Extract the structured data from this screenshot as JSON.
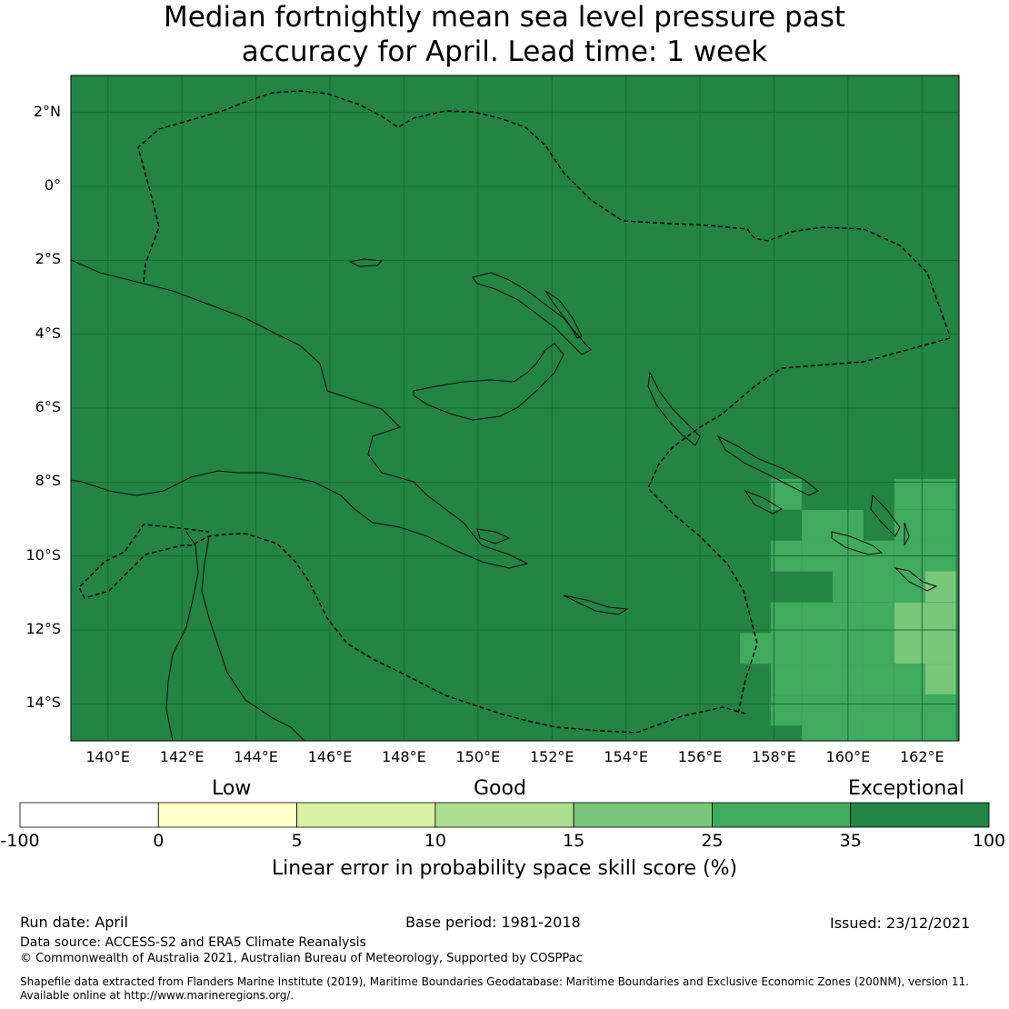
{
  "title_line1": "Median fortnightly mean sea level pressure past",
  "title_line2": "accuracy for April. Lead time: 1 week",
  "map": {
    "lon_range": [
      139,
      163
    ],
    "lat_range": [
      -15,
      3
    ],
    "lat_ticks": [
      {
        "value": 2,
        "label": "2°N"
      },
      {
        "value": 0,
        "label": "0°"
      },
      {
        "value": -2,
        "label": "2°S"
      },
      {
        "value": -4,
        "label": "4°S"
      },
      {
        "value": -6,
        "label": "6°S"
      },
      {
        "value": -8,
        "label": "8°S"
      },
      {
        "value": -10,
        "label": "10°S"
      },
      {
        "value": -12,
        "label": "12°S"
      },
      {
        "value": -14,
        "label": "14°S"
      }
    ],
    "lon_ticks": [
      {
        "value": 140,
        "label": "140°E"
      },
      {
        "value": 142,
        "label": "142°E"
      },
      {
        "value": 144,
        "label": "144°E"
      },
      {
        "value": 146,
        "label": "146°E"
      },
      {
        "value": 148,
        "label": "148°E"
      },
      {
        "value": 150,
        "label": "150°E"
      },
      {
        "value": 152,
        "label": "152°E"
      },
      {
        "value": 154,
        "label": "154°E"
      },
      {
        "value": 156,
        "label": "156°E"
      },
      {
        "value": 158,
        "label": "158°E"
      },
      {
        "value": 160,
        "label": "160°E"
      },
      {
        "value": 162,
        "label": "162°E"
      }
    ],
    "background_category": "Exceptional (35-100)",
    "background_color": "#238443",
    "grid": true,
    "cell_size_deg": 0.833,
    "cells": [
      {
        "lon": 158.33,
        "lat": -8.33,
        "color": "#41ab5d"
      },
      {
        "lon": 159.17,
        "lat": -9.17,
        "color": "#41ab5d"
      },
      {
        "lon": 160.0,
        "lat": -9.17,
        "color": "#41ab5d"
      },
      {
        "lon": 161.67,
        "lat": -8.33,
        "color": "#41ab5d"
      },
      {
        "lon": 162.5,
        "lat": -8.33,
        "color": "#41ab5d"
      },
      {
        "lon": 161.67,
        "lat": -9.17,
        "color": "#41ab5d"
      },
      {
        "lon": 162.5,
        "lat": -9.17,
        "color": "#41ab5d"
      },
      {
        "lon": 158.33,
        "lat": -10.0,
        "color": "#41ab5d"
      },
      {
        "lon": 159.17,
        "lat": -10.0,
        "color": "#41ab5d"
      },
      {
        "lon": 160.0,
        "lat": -10.0,
        "color": "#41ab5d"
      },
      {
        "lon": 160.83,
        "lat": -10.0,
        "color": "#41ab5d"
      },
      {
        "lon": 161.67,
        "lat": -10.0,
        "color": "#41ab5d"
      },
      {
        "lon": 162.5,
        "lat": -10.0,
        "color": "#41ab5d"
      },
      {
        "lon": 160.0,
        "lat": -10.83,
        "color": "#41ab5d"
      },
      {
        "lon": 160.83,
        "lat": -10.83,
        "color": "#41ab5d"
      },
      {
        "lon": 161.67,
        "lat": -10.83,
        "color": "#41ab5d"
      },
      {
        "lon": 162.5,
        "lat": -10.83,
        "color": "#78c679"
      },
      {
        "lon": 158.33,
        "lat": -11.67,
        "color": "#41ab5d"
      },
      {
        "lon": 159.17,
        "lat": -11.67,
        "color": "#41ab5d"
      },
      {
        "lon": 160.0,
        "lat": -11.67,
        "color": "#41ab5d"
      },
      {
        "lon": 160.83,
        "lat": -11.67,
        "color": "#41ab5d"
      },
      {
        "lon": 161.67,
        "lat": -11.67,
        "color": "#78c679"
      },
      {
        "lon": 162.5,
        "lat": -11.67,
        "color": "#78c679"
      },
      {
        "lon": 157.5,
        "lat": -12.5,
        "color": "#41ab5d"
      },
      {
        "lon": 158.33,
        "lat": -12.5,
        "color": "#41ab5d"
      },
      {
        "lon": 159.17,
        "lat": -12.5,
        "color": "#41ab5d"
      },
      {
        "lon": 160.0,
        "lat": -12.5,
        "color": "#41ab5d"
      },
      {
        "lon": 160.83,
        "lat": -12.5,
        "color": "#41ab5d"
      },
      {
        "lon": 161.67,
        "lat": -12.5,
        "color": "#78c679"
      },
      {
        "lon": 162.5,
        "lat": -12.5,
        "color": "#78c679"
      },
      {
        "lon": 158.33,
        "lat": -13.33,
        "color": "#41ab5d"
      },
      {
        "lon": 159.17,
        "lat": -13.33,
        "color": "#41ab5d"
      },
      {
        "lon": 160.0,
        "lat": -13.33,
        "color": "#41ab5d"
      },
      {
        "lon": 160.83,
        "lat": -13.33,
        "color": "#41ab5d"
      },
      {
        "lon": 161.67,
        "lat": -13.33,
        "color": "#41ab5d"
      },
      {
        "lon": 162.5,
        "lat": -13.33,
        "color": "#78c679"
      },
      {
        "lon": 158.33,
        "lat": -14.17,
        "color": "#41ab5d"
      },
      {
        "lon": 159.17,
        "lat": -14.17,
        "color": "#41ab5d"
      },
      {
        "lon": 160.0,
        "lat": -14.17,
        "color": "#41ab5d"
      },
      {
        "lon": 160.83,
        "lat": -14.17,
        "color": "#41ab5d"
      },
      {
        "lon": 161.67,
        "lat": -14.17,
        "color": "#41ab5d"
      },
      {
        "lon": 162.5,
        "lat": -14.17,
        "color": "#41ab5d"
      },
      {
        "lon": 159.17,
        "lat": -14.58,
        "color": "#41ab5d"
      },
      {
        "lon": 160.0,
        "lat": -14.58,
        "color": "#41ab5d"
      },
      {
        "lon": 160.83,
        "lat": -14.58,
        "color": "#41ab5d"
      },
      {
        "lon": 161.67,
        "lat": -14.58,
        "color": "#41ab5d"
      },
      {
        "lon": 162.5,
        "lat": -14.58,
        "color": "#41ab5d"
      }
    ]
  },
  "legend": {
    "categories": [
      "Low",
      "Good",
      "Exceptional"
    ],
    "bins": [
      {
        "from": -100,
        "to": 0,
        "color": "#ffffff"
      },
      {
        "from": 0,
        "to": 5,
        "color": "#ffffcc"
      },
      {
        "from": 5,
        "to": 10,
        "color": "#d9f0a3"
      },
      {
        "from": 10,
        "to": 15,
        "color": "#addd8e"
      },
      {
        "from": 15,
        "to": 25,
        "color": "#78c679"
      },
      {
        "from": 25,
        "to": 35,
        "color": "#41ab5d"
      },
      {
        "from": 35,
        "to": 100,
        "color": "#238443"
      }
    ],
    "tick_labels": [
      "-100",
      "0",
      "5",
      "10",
      "15",
      "25",
      "35",
      "100"
    ],
    "label": "Linear error in probability space skill score (%)"
  },
  "footer": {
    "run_date": "Run date: April",
    "base_period": "Base period: 1981-2018",
    "issued": "Issued: 23/12/2021",
    "data_source": "Data source: ACCESS-S2 and ERA5 Climate Reanalysis",
    "copyright": "© Commonwealth of Australia 2021, Australian Bureau of Meteorology, Supported by COSPPac",
    "shapefile_line1": "Shapefile data extracted from Flanders Marine Institute (2019), Maritime Boundaries Geodatabase: Maritime Boundaries and Exclusive Economic Zones (200NM), version 11.",
    "shapefile_line2": "Available online at http://www.marineregions.org/."
  }
}
